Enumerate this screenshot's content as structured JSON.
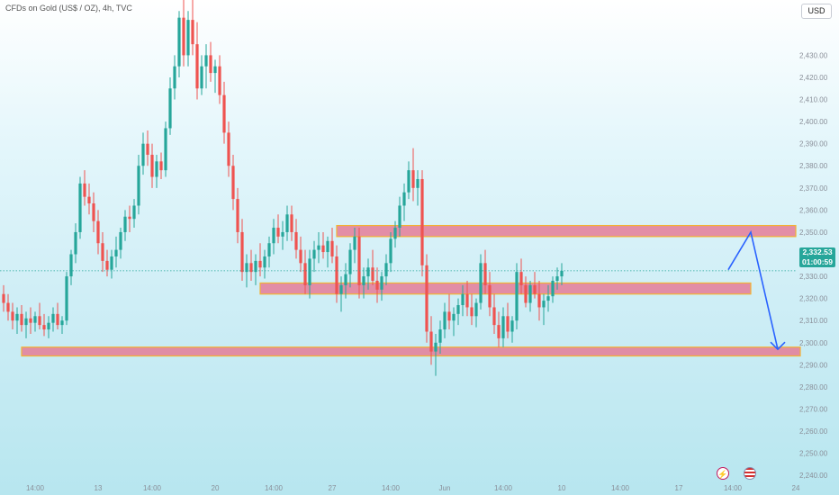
{
  "header": {
    "title": "CFDs on Gold (US$ / OZ), 4h, TVC"
  },
  "currency_button": "USD",
  "price_tag": {
    "price": "2,332.53",
    "countdown": "01:00:59"
  },
  "icons": [
    "lightning-icon",
    "us-flag-icon"
  ],
  "colors": {
    "bull": "#26a69a",
    "bear": "#ef5350",
    "zone_fill": "#e57794",
    "zone_border": "#f2b233",
    "projection": "#2962ff"
  },
  "chart_data": {
    "type": "candlestick",
    "title": "CFDs on Gold (US$ / OZ), 4h, TVC",
    "ylim": [
      2236,
      2455
    ],
    "y_ticks": [
      2240,
      2250,
      2260,
      2270,
      2280,
      2290,
      2300,
      2310,
      2320,
      2330,
      2340,
      2350,
      2360,
      2370,
      2380,
      2390,
      2400,
      2410,
      2420,
      2430
    ],
    "y_tick_labels": [
      "2,240.00",
      "2,250.00",
      "2,260.00",
      "2,270.00",
      "2,280.00",
      "2,290.00",
      "2,300.00",
      "2,310.00",
      "2,320.00",
      "2,330.00",
      "2,340.00",
      "2,350.00",
      "2,360.00",
      "2,370.00",
      "2,380.00",
      "2,390.00",
      "2,400.00",
      "2,410.00",
      "2,420.00",
      "2,430.00"
    ],
    "x_ticks": [
      {
        "label": "14:00",
        "bar": 7
      },
      {
        "label": "13",
        "bar": 21
      },
      {
        "label": "14:00",
        "bar": 33
      },
      {
        "label": "20",
        "bar": 47
      },
      {
        "label": "14:00",
        "bar": 60
      },
      {
        "label": "27",
        "bar": 73
      },
      {
        "label": "14:00",
        "bar": 86
      },
      {
        "label": "Jun",
        "bar": 98
      },
      {
        "label": "14:00",
        "bar": 111
      },
      {
        "label": "10",
        "bar": 124
      },
      {
        "label": "14:00",
        "bar": 137
      },
      {
        "label": "17",
        "bar": 150
      },
      {
        "label": "14:00",
        "bar": 162
      },
      {
        "label": "24",
        "bar": 176
      }
    ],
    "last_price": 2332.53,
    "zones": [
      {
        "from_bar": 74,
        "to_bar": 176,
        "top": 2353,
        "bottom": 2348
      },
      {
        "from_bar": 57,
        "to_bar": 166,
        "top": 2327,
        "bottom": 2322
      },
      {
        "from_bar": 4,
        "to_bar": 177,
        "top": 2298,
        "bottom": 2294
      }
    ],
    "projection": [
      {
        "bar": 161,
        "price": 2333
      },
      {
        "bar": 166,
        "price": 2350
      },
      {
        "bar": 172,
        "price": 2297
      }
    ],
    "candles": [
      [
        2322,
        2326,
        2314,
        2318
      ],
      [
        2318,
        2322,
        2310,
        2314
      ],
      [
        2314,
        2318,
        2306,
        2310
      ],
      [
        2310,
        2316,
        2304,
        2313
      ],
      [
        2313,
        2317,
        2305,
        2308
      ],
      [
        2308,
        2314,
        2302,
        2311
      ],
      [
        2311,
        2316,
        2304,
        2309
      ],
      [
        2309,
        2314,
        2305,
        2312
      ],
      [
        2312,
        2318,
        2306,
        2308
      ],
      [
        2308,
        2313,
        2303,
        2306
      ],
      [
        2306,
        2312,
        2302,
        2309
      ],
      [
        2309,
        2316,
        2305,
        2313
      ],
      [
        2313,
        2318,
        2306,
        2308
      ],
      [
        2308,
        2312,
        2304,
        2310
      ],
      [
        2310,
        2332,
        2308,
        2330
      ],
      [
        2330,
        2342,
        2326,
        2340
      ],
      [
        2340,
        2354,
        2336,
        2350
      ],
      [
        2350,
        2375,
        2347,
        2372
      ],
      [
        2372,
        2378,
        2362,
        2366
      ],
      [
        2366,
        2372,
        2358,
        2363
      ],
      [
        2363,
        2368,
        2350,
        2355
      ],
      [
        2355,
        2360,
        2340,
        2345
      ],
      [
        2345,
        2350,
        2332,
        2337
      ],
      [
        2337,
        2342,
        2330,
        2333
      ],
      [
        2333,
        2342,
        2329,
        2339
      ],
      [
        2339,
        2348,
        2334,
        2342
      ],
      [
        2342,
        2352,
        2338,
        2350
      ],
      [
        2350,
        2360,
        2346,
        2357
      ],
      [
        2357,
        2362,
        2350,
        2356
      ],
      [
        2356,
        2365,
        2352,
        2362
      ],
      [
        2362,
        2385,
        2358,
        2380
      ],
      [
        2380,
        2395,
        2376,
        2390
      ],
      [
        2390,
        2396,
        2380,
        2385
      ],
      [
        2385,
        2390,
        2370,
        2375
      ],
      [
        2375,
        2385,
        2370,
        2382
      ],
      [
        2382,
        2386,
        2374,
        2378
      ],
      [
        2378,
        2400,
        2375,
        2397
      ],
      [
        2397,
        2420,
        2394,
        2415
      ],
      [
        2415,
        2430,
        2410,
        2425
      ],
      [
        2425,
        2450,
        2420,
        2447
      ],
      [
        2447,
        2455,
        2425,
        2430
      ],
      [
        2430,
        2450,
        2425,
        2446
      ],
      [
        2446,
        2455,
        2430,
        2435
      ],
      [
        2435,
        2445,
        2410,
        2415
      ],
      [
        2415,
        2430,
        2412,
        2425
      ],
      [
        2425,
        2435,
        2415,
        2430
      ],
      [
        2430,
        2436,
        2418,
        2422
      ],
      [
        2422,
        2428,
        2413,
        2425
      ],
      [
        2425,
        2430,
        2408,
        2412
      ],
      [
        2412,
        2418,
        2390,
        2395
      ],
      [
        2395,
        2400,
        2375,
        2380
      ],
      [
        2380,
        2385,
        2360,
        2365
      ],
      [
        2365,
        2370,
        2345,
        2350
      ],
      [
        2350,
        2356,
        2328,
        2332
      ],
      [
        2332,
        2340,
        2325,
        2336
      ],
      [
        2336,
        2342,
        2328,
        2332
      ],
      [
        2332,
        2340,
        2326,
        2337
      ],
      [
        2337,
        2345,
        2330,
        2334
      ],
      [
        2334,
        2342,
        2329,
        2339
      ],
      [
        2339,
        2348,
        2334,
        2345
      ],
      [
        2345,
        2356,
        2340,
        2352
      ],
      [
        2352,
        2358,
        2345,
        2348
      ],
      [
        2348,
        2355,
        2342,
        2350
      ],
      [
        2350,
        2362,
        2346,
        2358
      ],
      [
        2358,
        2362,
        2346,
        2350
      ],
      [
        2350,
        2356,
        2338,
        2342
      ],
      [
        2342,
        2348,
        2332,
        2336
      ],
      [
        2336,
        2342,
        2322,
        2326
      ],
      [
        2326,
        2342,
        2320,
        2338
      ],
      [
        2338,
        2346,
        2332,
        2342
      ],
      [
        2342,
        2350,
        2336,
        2344
      ],
      [
        2344,
        2350,
        2338,
        2341
      ],
      [
        2341,
        2348,
        2334,
        2346
      ],
      [
        2346,
        2352,
        2336,
        2339
      ],
      [
        2339,
        2344,
        2318,
        2322
      ],
      [
        2322,
        2330,
        2314,
        2326
      ],
      [
        2326,
        2336,
        2320,
        2331
      ],
      [
        2331,
        2345,
        2325,
        2342
      ],
      [
        2342,
        2352,
        2336,
        2348
      ],
      [
        2348,
        2352,
        2320,
        2326
      ],
      [
        2326,
        2334,
        2320,
        2330
      ],
      [
        2330,
        2338,
        2324,
        2334
      ],
      [
        2334,
        2342,
        2326,
        2328
      ],
      [
        2328,
        2334,
        2318,
        2324
      ],
      [
        2324,
        2332,
        2319,
        2330
      ],
      [
        2330,
        2340,
        2326,
        2336
      ],
      [
        2336,
        2350,
        2332,
        2347
      ],
      [
        2347,
        2355,
        2343,
        2352
      ],
      [
        2352,
        2366,
        2348,
        2362
      ],
      [
        2362,
        2372,
        2355,
        2368
      ],
      [
        2368,
        2382,
        2365,
        2378
      ],
      [
        2378,
        2388,
        2364,
        2370
      ],
      [
        2370,
        2378,
        2362,
        2374
      ],
      [
        2374,
        2378,
        2330,
        2335
      ],
      [
        2335,
        2340,
        2300,
        2305
      ],
      [
        2305,
        2312,
        2290,
        2296
      ],
      [
        2296,
        2304,
        2285,
        2300
      ],
      [
        2300,
        2310,
        2295,
        2306
      ],
      [
        2306,
        2318,
        2302,
        2314
      ],
      [
        2314,
        2322,
        2306,
        2310
      ],
      [
        2310,
        2316,
        2303,
        2313
      ],
      [
        2313,
        2320,
        2308,
        2317
      ],
      [
        2317,
        2326,
        2312,
        2322
      ],
      [
        2322,
        2328,
        2312,
        2316
      ],
      [
        2316,
        2322,
        2308,
        2312
      ],
      [
        2312,
        2320,
        2307,
        2318
      ],
      [
        2318,
        2340,
        2315,
        2336
      ],
      [
        2336,
        2342,
        2322,
        2326
      ],
      [
        2326,
        2332,
        2312,
        2316
      ],
      [
        2316,
        2322,
        2304,
        2308
      ],
      [
        2308,
        2314,
        2298,
        2302
      ],
      [
        2302,
        2316,
        2298,
        2312
      ],
      [
        2312,
        2318,
        2302,
        2305
      ],
      [
        2305,
        2312,
        2300,
        2310
      ],
      [
        2310,
        2336,
        2306,
        2332
      ],
      [
        2332,
        2338,
        2322,
        2326
      ],
      [
        2326,
        2330,
        2316,
        2318
      ],
      [
        2318,
        2328,
        2314,
        2326
      ],
      [
        2326,
        2332,
        2320,
        2322
      ],
      [
        2322,
        2328,
        2310,
        2316
      ],
      [
        2316,
        2322,
        2308,
        2319
      ],
      [
        2319,
        2326,
        2314,
        2321
      ],
      [
        2321,
        2330,
        2318,
        2328
      ],
      [
        2328,
        2334,
        2324,
        2330
      ],
      [
        2330,
        2336,
        2326,
        2332.53
      ]
    ]
  }
}
